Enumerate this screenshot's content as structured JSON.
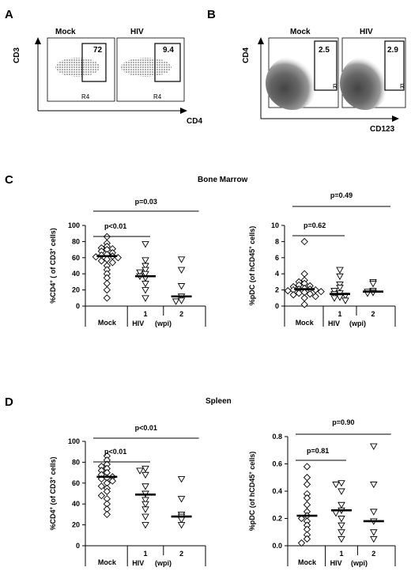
{
  "panels": {
    "A": {
      "letter": "A",
      "plots": [
        {
          "title": "Mock",
          "gate_value": "72",
          "gate_label": "R4"
        },
        {
          "title": "HIV",
          "gate_value": "9.4",
          "gate_label": "R4"
        }
      ],
      "y_axis": "CD3",
      "x_axis": "CD4"
    },
    "B": {
      "letter": "B",
      "plots": [
        {
          "title": "Mock",
          "gate_value": "2.5",
          "gate_label": "R"
        },
        {
          "title": "HIV",
          "gate_value": "2.9",
          "gate_label": "R"
        }
      ],
      "y_axis": "CD4",
      "x_axis": "CD123"
    },
    "C": {
      "letter": "C",
      "section_title": "Bone Marrow"
    },
    "D": {
      "letter": "D",
      "section_title": "Spleen"
    }
  },
  "chart_data": [
    {
      "id": "C-left",
      "type": "scatter",
      "section": "Bone Marrow",
      "ylabel": "%CD4+ ( of CD3+ cells)",
      "ylim": [
        0,
        100
      ],
      "yticks": [
        "0",
        "20",
        "40",
        "60",
        "80",
        "100"
      ],
      "categories": [
        "Mock",
        "1",
        "2"
      ],
      "xgroup_label": "HIV",
      "xunit_label": "(wpi)",
      "series": [
        {
          "group": "Mock",
          "marker": "diamond",
          "median": 62,
          "values": [
            86,
            78,
            74,
            72,
            71,
            70,
            68,
            66,
            64,
            63,
            62,
            61,
            60,
            58,
            56,
            54,
            50,
            45,
            40,
            35,
            28,
            20,
            10
          ]
        },
        {
          "group": "1",
          "marker": "triangle",
          "median": 37,
          "values": [
            77,
            57,
            50,
            45,
            42,
            40,
            37,
            35,
            28,
            20,
            10
          ]
        },
        {
          "group": "2",
          "marker": "triangle",
          "median": 12,
          "values": [
            58,
            45,
            25,
            12,
            7,
            6
          ]
        }
      ],
      "annotations": [
        {
          "text": "p=0.03",
          "from": "Mock",
          "to": "2"
        },
        {
          "text": "p<0.01",
          "from": "Mock",
          "to": "1"
        }
      ]
    },
    {
      "id": "C-right",
      "type": "scatter",
      "section": "Bone Marrow",
      "ylabel": "%pDC (of hCD45+ cells)",
      "ylim": [
        0,
        10
      ],
      "yticks": [
        "0",
        "2",
        "4",
        "6",
        "8",
        "10"
      ],
      "categories": [
        "Mock",
        "1",
        "2"
      ],
      "xgroup_label": "HIV",
      "xunit_label": "(wpi)",
      "series": [
        {
          "group": "Mock",
          "marker": "diamond",
          "median": 2.1,
          "values": [
            8.0,
            4.0,
            3.2,
            3.0,
            2.8,
            2.6,
            2.5,
            2.4,
            2.2,
            2.1,
            2.1,
            2.0,
            2.0,
            1.9,
            1.8,
            1.7,
            1.6,
            1.5,
            1.4,
            1.2,
            1.0,
            0.2
          ]
        },
        {
          "group": "1",
          "marker": "triangle",
          "median": 1.5,
          "values": [
            4.5,
            3.7,
            2.7,
            2.3,
            1.9,
            1.6,
            1.5,
            1.3,
            1.1,
            1.0,
            0.7
          ]
        },
        {
          "group": "2",
          "marker": "triangle",
          "median": 1.8,
          "values": [
            3.0,
            2.8,
            1.9,
            1.8,
            1.7,
            1.6
          ]
        }
      ],
      "annotations": [
        {
          "text": "p=0.49",
          "from": "Mock",
          "to": "2"
        },
        {
          "text": "p=0.62",
          "from": "Mock",
          "to": "1"
        }
      ]
    },
    {
      "id": "D-left",
      "type": "scatter",
      "section": "Spleen",
      "ylabel": "%CD4+ (of CD3+ cells)",
      "ylim": [
        0,
        100
      ],
      "yticks": [
        "0",
        "20",
        "40",
        "60",
        "80",
        "100"
      ],
      "categories": [
        "Mock",
        "1",
        "2"
      ],
      "xgroup_label": "HIV",
      "xunit_label": "(wpi)",
      "series": [
        {
          "group": "Mock",
          "marker": "diamond",
          "median": 66,
          "values": [
            86,
            82,
            78,
            76,
            74,
            72,
            70,
            68,
            66,
            65,
            64,
            62,
            60,
            57,
            55,
            52,
            48,
            45,
            40,
            35,
            30
          ]
        },
        {
          "group": "1",
          "marker": "triangle",
          "median": 49,
          "values": [
            74,
            72,
            68,
            57,
            50,
            44,
            40,
            35,
            28,
            20
          ]
        },
        {
          "group": "2",
          "marker": "triangle",
          "median": 28,
          "values": [
            64,
            45,
            30,
            28,
            25,
            20
          ]
        }
      ],
      "annotations": [
        {
          "text": "p<0.01",
          "from": "Mock",
          "to": "2"
        },
        {
          "text": "p<0.01",
          "from": "Mock",
          "to": "1"
        }
      ]
    },
    {
      "id": "D-right",
      "type": "scatter",
      "section": "Spleen",
      "ylabel": "%pDC (of hCD45+ cells)",
      "ylim": [
        0,
        0.8
      ],
      "yticks": [
        "0.0",
        "0.2",
        "0.4",
        "0.6",
        "0.8"
      ],
      "categories": [
        "Mock",
        "1",
        "2"
      ],
      "xgroup_label": "HIV",
      "xunit_label": "(wpi)",
      "series": [
        {
          "group": "Mock",
          "marker": "diamond",
          "median": 0.22,
          "values": [
            0.58,
            0.5,
            0.45,
            0.38,
            0.35,
            0.3,
            0.25,
            0.22,
            0.2,
            0.18,
            0.15,
            0.12,
            0.08,
            0.05,
            0.02
          ]
        },
        {
          "group": "1",
          "marker": "triangle",
          "median": 0.26,
          "values": [
            0.46,
            0.45,
            0.4,
            0.3,
            0.26,
            0.24,
            0.2,
            0.15,
            0.1,
            0.05
          ]
        },
        {
          "group": "2",
          "marker": "triangle",
          "median": 0.18,
          "values": [
            0.73,
            0.45,
            0.25,
            0.18,
            0.1,
            0.05
          ]
        }
      ],
      "annotations": [
        {
          "text": "p=0.90",
          "from": "Mock",
          "to": "2"
        },
        {
          "text": "p=0.81",
          "from": "Mock",
          "to": "1"
        }
      ]
    }
  ]
}
